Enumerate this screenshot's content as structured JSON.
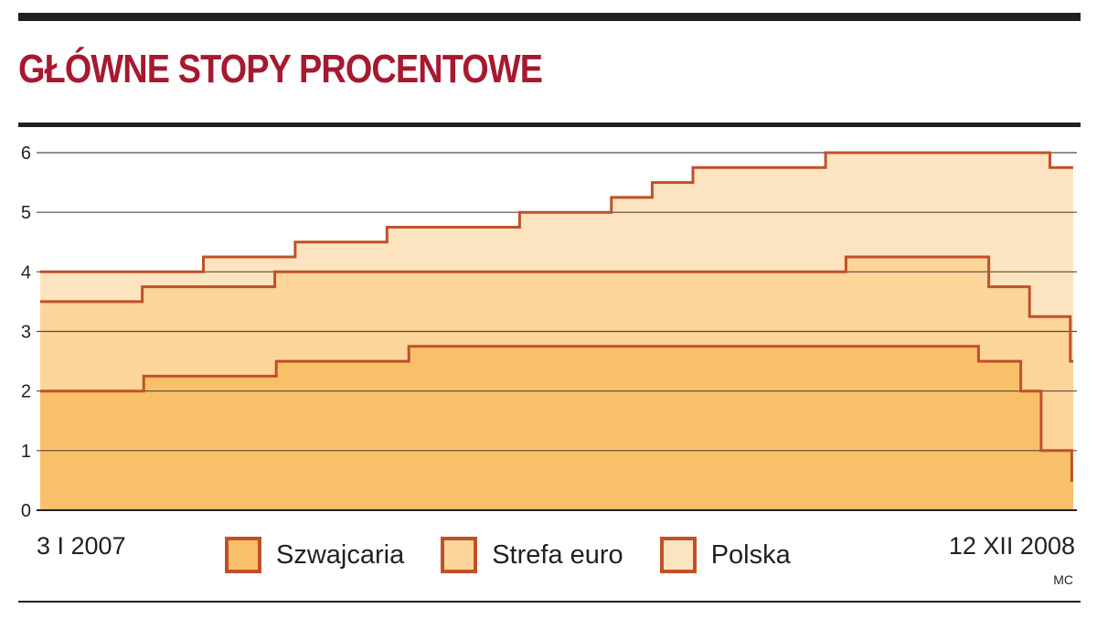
{
  "title": "GŁÓWNE STOPY PROCENTOWE",
  "date_start": "3 I 2007",
  "date_end": "12 XII 2008",
  "credit": "MC",
  "colors": {
    "title": "#a6192e",
    "line": "#c0502a",
    "fill_szwajcaria": "#f9c06a",
    "fill_strefa_euro": "#fcd59b",
    "fill_polska": "#fde4c0",
    "grid": "#5a4a3a"
  },
  "chart_data": {
    "type": "area",
    "title": "GŁÓWNE STOPY PROCENTOWE",
    "xlabel": "",
    "ylabel": "",
    "x_range": [
      "2007-01-03",
      "2008-12-12"
    ],
    "ylim": [
      0,
      6
    ],
    "yticks": [
      0,
      1,
      2,
      3,
      4,
      5,
      6
    ],
    "grid": true,
    "legend_position": "bottom",
    "step": true,
    "series": [
      {
        "name": "Polska",
        "color": "#fde4c0",
        "points": [
          [
            "2007-01-03",
            4.0
          ],
          [
            "2007-04-25",
            4.25
          ],
          [
            "2007-06-27",
            4.5
          ],
          [
            "2007-08-29",
            4.75
          ],
          [
            "2007-11-28",
            5.0
          ],
          [
            "2008-01-30",
            5.25
          ],
          [
            "2008-02-27",
            5.5
          ],
          [
            "2008-03-26",
            5.75
          ],
          [
            "2008-06-25",
            6.0
          ],
          [
            "2008-11-26",
            5.75
          ],
          [
            "2008-12-12",
            5.75
          ]
        ]
      },
      {
        "name": "Strefa euro",
        "color": "#fcd59b",
        "points": [
          [
            "2007-01-03",
            3.5
          ],
          [
            "2007-03-14",
            3.75
          ],
          [
            "2007-06-13",
            4.0
          ],
          [
            "2008-07-09",
            4.25
          ],
          [
            "2008-10-15",
            3.75
          ],
          [
            "2008-11-12",
            3.25
          ],
          [
            "2008-12-10",
            2.5
          ],
          [
            "2008-12-12",
            2.5
          ]
        ]
      },
      {
        "name": "Szwajcaria",
        "color": "#f9c06a",
        "points": [
          [
            "2007-01-03",
            2.0
          ],
          [
            "2007-03-15",
            2.25
          ],
          [
            "2007-06-14",
            2.5
          ],
          [
            "2007-09-13",
            2.75
          ],
          [
            "2008-10-08",
            2.5
          ],
          [
            "2008-11-06",
            2.0
          ],
          [
            "2008-11-20",
            1.0
          ],
          [
            "2008-12-11",
            0.5
          ],
          [
            "2008-12-12",
            0.5
          ]
        ]
      }
    ]
  }
}
